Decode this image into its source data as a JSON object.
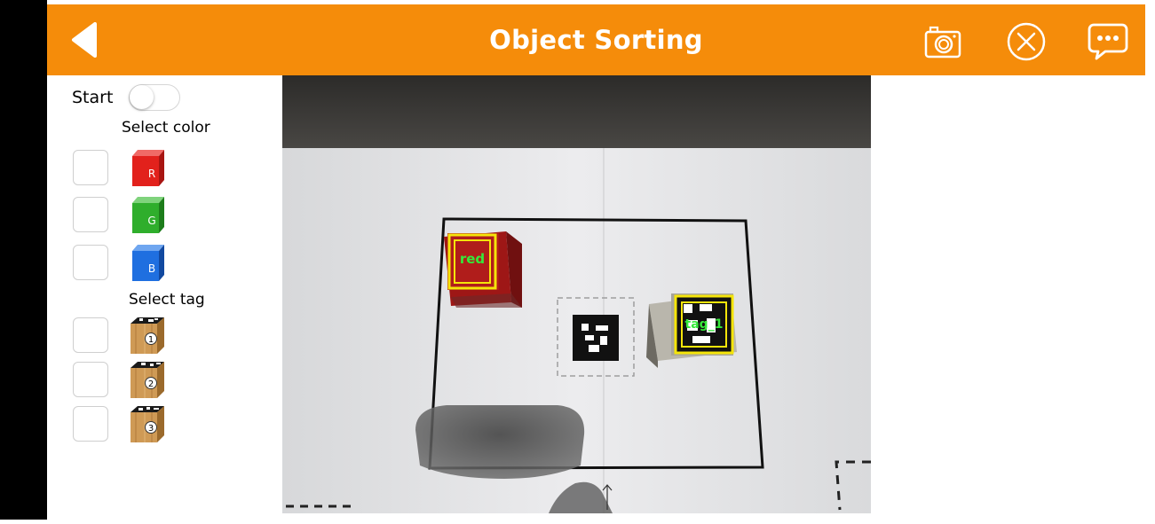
{
  "header": {
    "title": "Object Sorting",
    "background_color": "#f58c0a",
    "icons": [
      "back-arrow-icon",
      "camera-icon",
      "close-circle-icon",
      "chat-bubble-icon"
    ]
  },
  "sidebar": {
    "start_label": "Start",
    "start_toggle_on": false,
    "select_color_label": "Select color",
    "colors": [
      {
        "letter": "R",
        "color": "#e2211c",
        "checked": false
      },
      {
        "letter": "G",
        "color": "#2fae2c",
        "checked": false
      },
      {
        "letter": "B",
        "color": "#1f6fe0",
        "checked": false
      }
    ],
    "select_tag_label": "Select tag",
    "tags": [
      {
        "number": "1",
        "checked": false
      },
      {
        "number": "2",
        "checked": false
      },
      {
        "number": "3",
        "checked": false
      }
    ]
  },
  "camera": {
    "detections": [
      {
        "label": "red",
        "box_color": "#f5e50a",
        "text_color": "#35e83a"
      },
      {
        "label": "tag_1",
        "box_color": "#f5e50a",
        "text_color": "#35e83a"
      }
    ]
  }
}
